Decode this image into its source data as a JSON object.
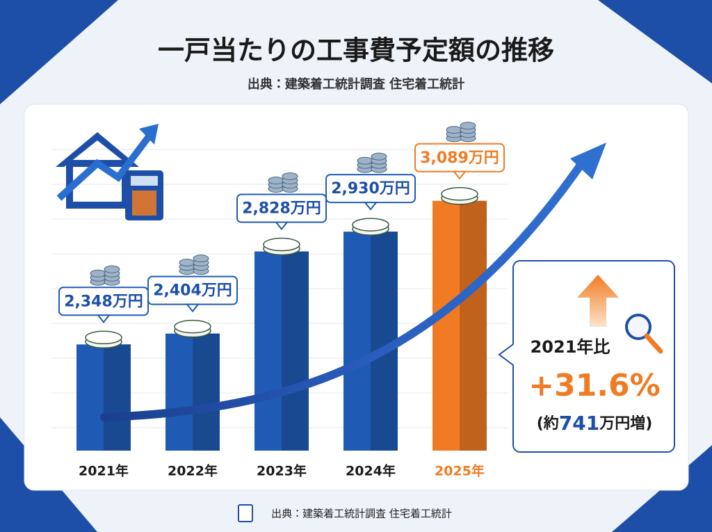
{
  "chart_data": {
    "type": "bar",
    "title": "一戸当たりの工事費予定額の推移",
    "subtitle": "出典：建築着工統計調査 住宅着工統計",
    "source": "出典：建築着工統計調査 住宅着工統計",
    "categories": [
      "2021年",
      "2022年",
      "2023年",
      "2024年",
      "2025年"
    ],
    "values": [
      2348,
      2404,
      2828,
      2930,
      3089
    ],
    "value_labels": [
      "2,348万円",
      "2,404万円",
      "2,828万円",
      "2,930万円",
      "3,089万円"
    ],
    "colors": [
      "#1f5bb5",
      "#1f5bb5",
      "#1f5bb5",
      "#1f5bb5",
      "#f07b22"
    ],
    "ylim": [
      1800,
      3300
    ],
    "annotation": {
      "label": "2021年比",
      "change": "+31.6%",
      "prefix": "(約",
      "amount": "741",
      "suffix": "万円増)"
    }
  }
}
